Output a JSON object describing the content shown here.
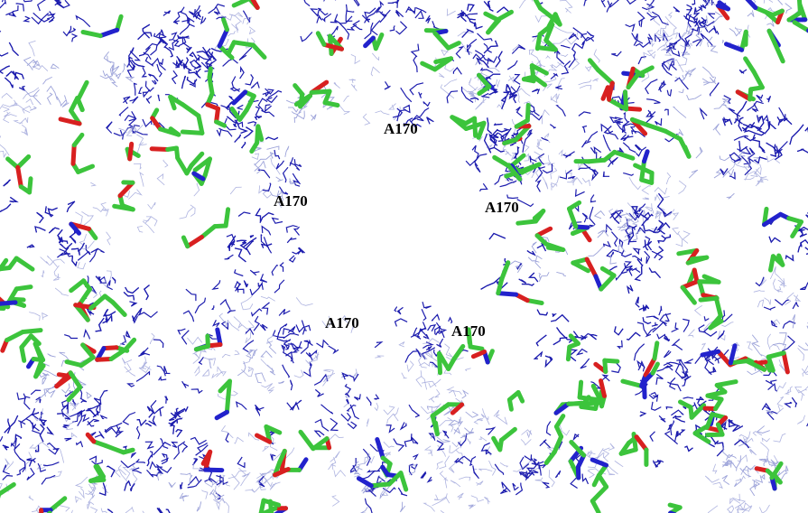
{
  "labels": [
    "A170",
    "A170",
    "A170",
    "A170",
    "A170"
  ]
}
